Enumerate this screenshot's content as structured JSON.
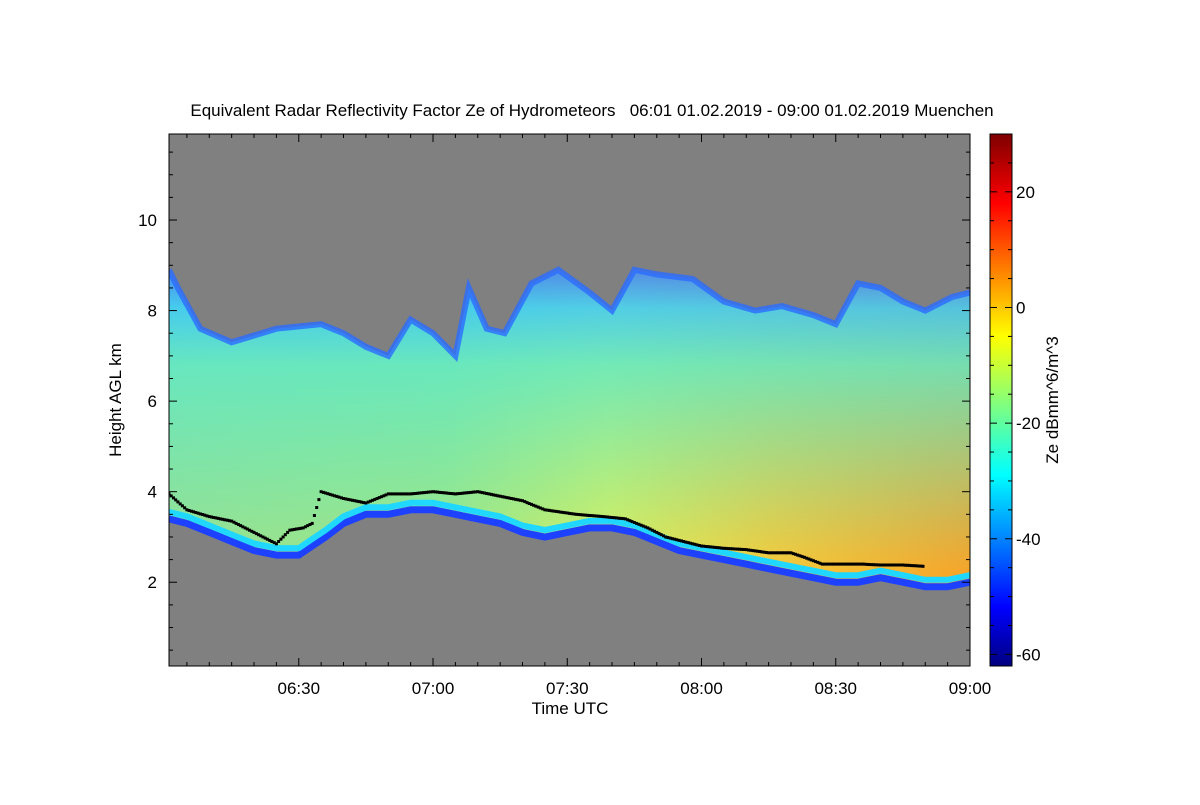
{
  "chart_data": {
    "type": "heatmap",
    "title": "Equivalent Radar Reflectivity Factor Ze of Hydrometeors   06:01 01.02.2019 - 09:00 01.02.2019 Muenchen",
    "xlabel": "Time UTC",
    "ylabel": "Height AGL km",
    "xlim_minutes_utc": [
      361,
      540
    ],
    "xticks": [
      {
        "minute": 390,
        "label": "06:30"
      },
      {
        "minute": 420,
        "label": "07:00"
      },
      {
        "minute": 450,
        "label": "07:30"
      },
      {
        "minute": 480,
        "label": "08:00"
      },
      {
        "minute": 510,
        "label": "08:30"
      },
      {
        "minute": 540,
        "label": "09:00"
      }
    ],
    "ylim": [
      0.15,
      11.9
    ],
    "yticks": [
      2,
      4,
      6,
      8,
      10
    ],
    "colorbar": {
      "label": "Ze dBmm^6/m^3",
      "range": [
        -62,
        30
      ],
      "ticks": [
        -60,
        -40,
        -20,
        0,
        20
      ],
      "colormap": "jet"
    },
    "background_color": "#808080",
    "cloud_top_km": [
      [
        361,
        8.9
      ],
      [
        363,
        8.5
      ],
      [
        368,
        7.6
      ],
      [
        375,
        7.3
      ],
      [
        385,
        7.6
      ],
      [
        395,
        7.7
      ],
      [
        400,
        7.5
      ],
      [
        405,
        7.2
      ],
      [
        410,
        7.0
      ],
      [
        415,
        7.8
      ],
      [
        420,
        7.5
      ],
      [
        425,
        7.0
      ],
      [
        428,
        8.5
      ],
      [
        432,
        7.6
      ],
      [
        436,
        7.5
      ],
      [
        442,
        8.6
      ],
      [
        448,
        8.9
      ],
      [
        455,
        8.4
      ],
      [
        460,
        8.0
      ],
      [
        465,
        8.9
      ],
      [
        470,
        8.8
      ],
      [
        478,
        8.7
      ],
      [
        485,
        8.2
      ],
      [
        492,
        8.0
      ],
      [
        498,
        8.1
      ],
      [
        505,
        7.9
      ],
      [
        510,
        7.7
      ],
      [
        515,
        8.6
      ],
      [
        520,
        8.5
      ],
      [
        525,
        8.2
      ],
      [
        530,
        8.0
      ],
      [
        536,
        8.3
      ],
      [
        540,
        8.4
      ]
    ],
    "cloud_base_km": [
      [
        361,
        3.4
      ],
      [
        365,
        3.3
      ],
      [
        370,
        3.1
      ],
      [
        375,
        2.9
      ],
      [
        380,
        2.7
      ],
      [
        385,
        2.6
      ],
      [
        390,
        2.6
      ],
      [
        393,
        2.8
      ],
      [
        396,
        3.0
      ],
      [
        400,
        3.3
      ],
      [
        405,
        3.5
      ],
      [
        410,
        3.5
      ],
      [
        415,
        3.6
      ],
      [
        420,
        3.6
      ],
      [
        425,
        3.5
      ],
      [
        430,
        3.4
      ],
      [
        435,
        3.3
      ],
      [
        440,
        3.1
      ],
      [
        445,
        3.0
      ],
      [
        450,
        3.1
      ],
      [
        455,
        3.2
      ],
      [
        460,
        3.2
      ],
      [
        465,
        3.1
      ],
      [
        470,
        2.9
      ],
      [
        475,
        2.7
      ],
      [
        480,
        2.6
      ],
      [
        485,
        2.5
      ],
      [
        490,
        2.4
      ],
      [
        495,
        2.3
      ],
      [
        500,
        2.2
      ],
      [
        505,
        2.1
      ],
      [
        510,
        2.0
      ],
      [
        515,
        2.0
      ],
      [
        520,
        2.1
      ],
      [
        525,
        2.0
      ],
      [
        530,
        1.9
      ],
      [
        535,
        1.9
      ],
      [
        540,
        2.0
      ]
    ],
    "melting_layer_km": [
      [
        361,
        3.95
      ],
      [
        365,
        3.6
      ],
      [
        370,
        3.45
      ],
      [
        375,
        3.35
      ],
      [
        380,
        3.1
      ],
      [
        385,
        2.85
      ],
      [
        388,
        3.15
      ],
      [
        391,
        3.2
      ],
      [
        393,
        3.3
      ],
      [
        395,
        4.0
      ],
      [
        400,
        3.85
      ],
      [
        405,
        3.75
      ],
      [
        410,
        3.95
      ],
      [
        415,
        3.95
      ],
      [
        420,
        4.0
      ],
      [
        425,
        3.95
      ],
      [
        430,
        4.0
      ],
      [
        435,
        3.9
      ],
      [
        440,
        3.8
      ],
      [
        445,
        3.6
      ],
      [
        452,
        3.5
      ],
      [
        458,
        3.45
      ],
      [
        463,
        3.4
      ],
      [
        468,
        3.2
      ],
      [
        472,
        3.0
      ],
      [
        476,
        2.9
      ],
      [
        480,
        2.8
      ],
      [
        485,
        2.75
      ],
      [
        490,
        2.72
      ],
      [
        495,
        2.65
      ],
      [
        500,
        2.65
      ],
      [
        503,
        2.55
      ],
      [
        507,
        2.4
      ],
      [
        512,
        2.4
      ],
      [
        516,
        2.4
      ],
      [
        520,
        2.38
      ],
      [
        525,
        2.38
      ],
      [
        530,
        2.35
      ]
    ]
  }
}
